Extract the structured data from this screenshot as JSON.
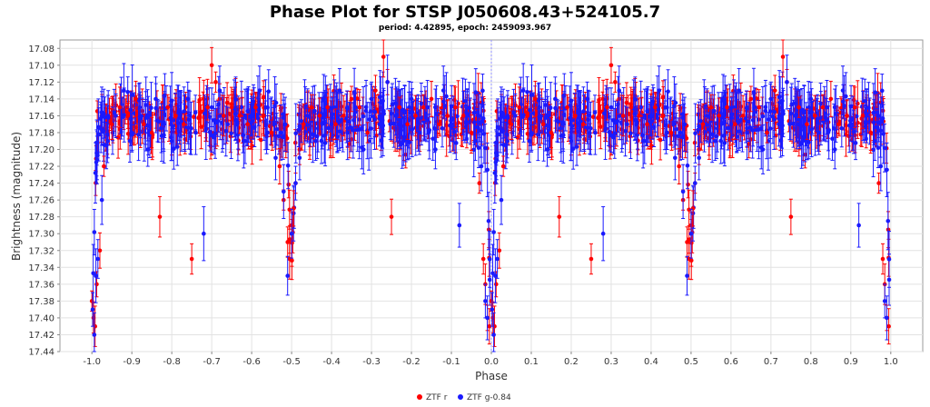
{
  "colors": {
    "ztf_r": "#ff0000",
    "ztf_g": "#1a1aff",
    "grid": "#e2e2e2",
    "zero_line": "#9090ff"
  },
  "chart_data": {
    "type": "scatter",
    "title": "Phase Plot for STSP J050608.43+524105.7",
    "subtitle": "period: 4.42895, epoch: 2459093.967",
    "xlabel": "Phase",
    "ylabel": "Brightness (magnitude)",
    "xlim": [
      -1.08,
      1.08
    ],
    "ylim": [
      17.44,
      17.07
    ],
    "y_inverted": true,
    "grid": true,
    "legend_position": "bottom-center",
    "x_ticks": [
      "-1.0",
      "-0.9",
      "-0.8",
      "-0.7",
      "-0.6",
      "-0.5",
      "-0.4",
      "-0.3",
      "-0.2",
      "-0.1",
      "0.0",
      "0.1",
      "0.2",
      "0.3",
      "0.4",
      "0.5",
      "0.6",
      "0.7",
      "0.8",
      "0.9",
      "1.0"
    ],
    "y_ticks": [
      "17.08",
      "17.10",
      "17.12",
      "17.14",
      "17.16",
      "17.18",
      "17.20",
      "17.22",
      "17.24",
      "17.26",
      "17.28",
      "17.30",
      "17.32",
      "17.34",
      "17.36",
      "17.38",
      "17.40",
      "17.42",
      "17.44"
    ],
    "baseline_mag": 17.165,
    "series": [
      {
        "name": "ZTF r",
        "color": "#ff0000",
        "repeat_at_phase_offset": -1,
        "x": [
          0.0,
          0.004,
          0.008,
          0.012,
          0.02,
          0.03,
          0.05,
          0.07,
          0.09,
          0.11,
          0.13,
          0.15,
          0.17,
          0.19,
          0.21,
          0.23,
          0.25,
          0.27,
          0.29,
          0.3,
          0.31,
          0.32,
          0.33,
          0.35,
          0.37,
          0.39,
          0.41,
          0.43,
          0.45,
          0.47,
          0.48,
          0.49,
          0.495,
          0.5,
          0.505,
          0.51,
          0.52,
          0.53,
          0.55,
          0.57,
          0.59,
          0.61,
          0.63,
          0.65,
          0.67,
          0.69,
          0.71,
          0.73,
          0.74,
          0.75,
          0.77,
          0.79,
          0.81,
          0.83,
          0.85,
          0.87,
          0.89,
          0.91,
          0.93,
          0.95,
          0.97,
          0.98,
          0.985,
          0.99,
          0.995
        ],
        "y": [
          17.38,
          17.4,
          17.41,
          17.36,
          17.32,
          17.22,
          17.17,
          17.15,
          17.16,
          17.14,
          17.17,
          17.18,
          17.28,
          17.15,
          17.16,
          17.17,
          17.33,
          17.16,
          17.15,
          17.1,
          17.12,
          17.14,
          17.16,
          17.15,
          17.16,
          17.17,
          17.15,
          17.16,
          17.18,
          17.22,
          17.26,
          17.31,
          17.33,
          17.29,
          17.27,
          17.24,
          17.2,
          17.17,
          17.15,
          17.16,
          17.15,
          17.17,
          17.16,
          17.14,
          17.15,
          17.18,
          17.13,
          17.09,
          17.12,
          17.28,
          17.15,
          17.17,
          17.16,
          17.15,
          17.14,
          17.17,
          17.16,
          17.15,
          17.16,
          17.18,
          17.24,
          17.33,
          17.36,
          17.4,
          17.41
        ]
      },
      {
        "name": "ZTF g-0.84",
        "color": "#1a1aff",
        "repeat_at_phase_offset": -1,
        "x": [
          0.002,
          0.006,
          0.01,
          0.015,
          0.025,
          0.04,
          0.06,
          0.08,
          0.1,
          0.12,
          0.14,
          0.16,
          0.18,
          0.2,
          0.22,
          0.24,
          0.26,
          0.28,
          0.3,
          0.32,
          0.34,
          0.36,
          0.38,
          0.4,
          0.42,
          0.44,
          0.46,
          0.48,
          0.49,
          0.5,
          0.51,
          0.52,
          0.54,
          0.56,
          0.58,
          0.6,
          0.62,
          0.64,
          0.66,
          0.68,
          0.7,
          0.72,
          0.74,
          0.76,
          0.78,
          0.8,
          0.82,
          0.84,
          0.86,
          0.88,
          0.9,
          0.92,
          0.94,
          0.96,
          0.975,
          0.985,
          0.99
        ],
        "y": [
          17.39,
          17.42,
          17.35,
          17.33,
          17.26,
          17.19,
          17.16,
          17.13,
          17.18,
          17.15,
          17.2,
          17.14,
          17.17,
          17.19,
          17.16,
          17.14,
          17.18,
          17.3,
          17.15,
          17.13,
          17.17,
          17.14,
          17.19,
          17.16,
          17.13,
          17.18,
          17.21,
          17.25,
          17.35,
          17.3,
          17.24,
          17.21,
          17.16,
          17.19,
          17.14,
          17.17,
          17.13,
          17.18,
          17.15,
          17.2,
          17.14,
          17.17,
          17.12,
          17.16,
          17.19,
          17.14,
          17.18,
          17.15,
          17.2,
          17.13,
          17.17,
          17.29,
          17.16,
          17.19,
          17.22,
          17.38,
          17.4
        ]
      }
    ]
  }
}
